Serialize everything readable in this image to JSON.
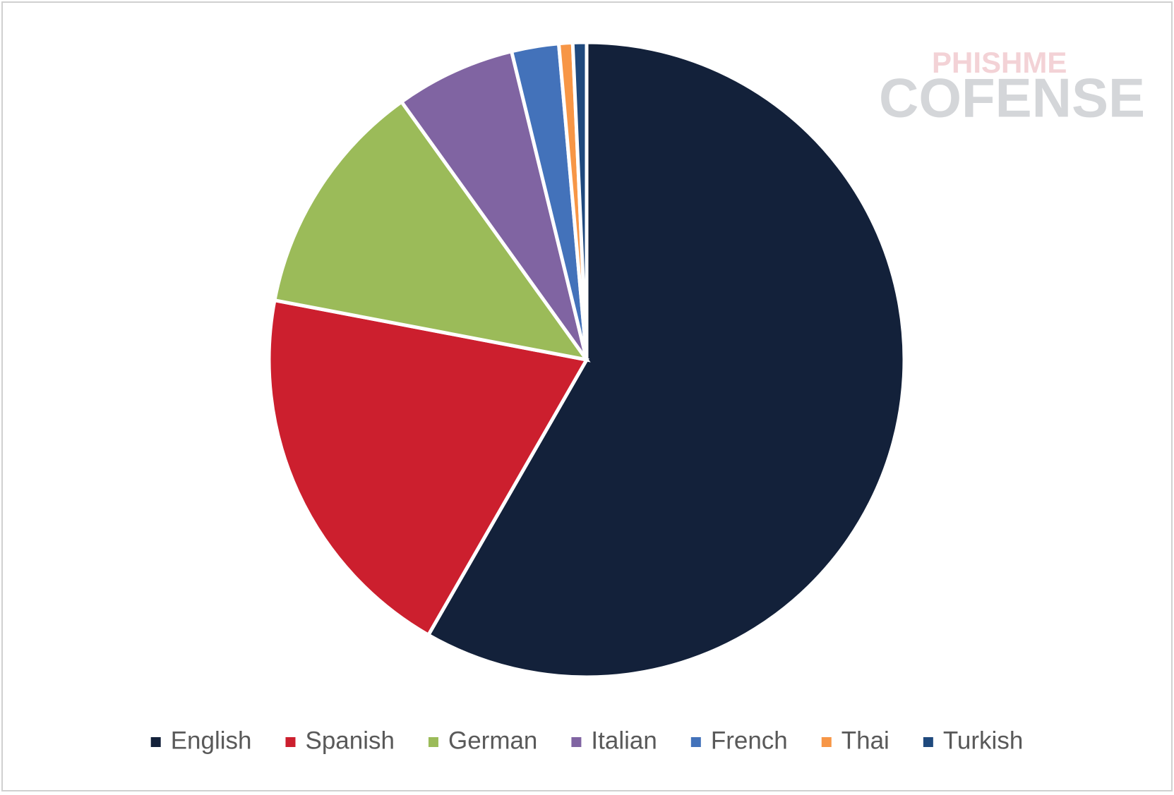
{
  "chart_data": {
    "type": "pie",
    "categories": [
      "English",
      "Spanish",
      "German",
      "Italian",
      "French",
      "Thai",
      "Turkish"
    ],
    "values": [
      58.3,
      19.7,
      12.1,
      6.1,
      2.4,
      0.7,
      0.7
    ],
    "colors": [
      "#13213a",
      "#cc1f2e",
      "#9bbb59",
      "#8064a2",
      "#4372ba",
      "#f79646",
      "#1f497d"
    ],
    "legend": "bottom",
    "watermark": [
      "PHISHME",
      "COFENSE"
    ]
  }
}
